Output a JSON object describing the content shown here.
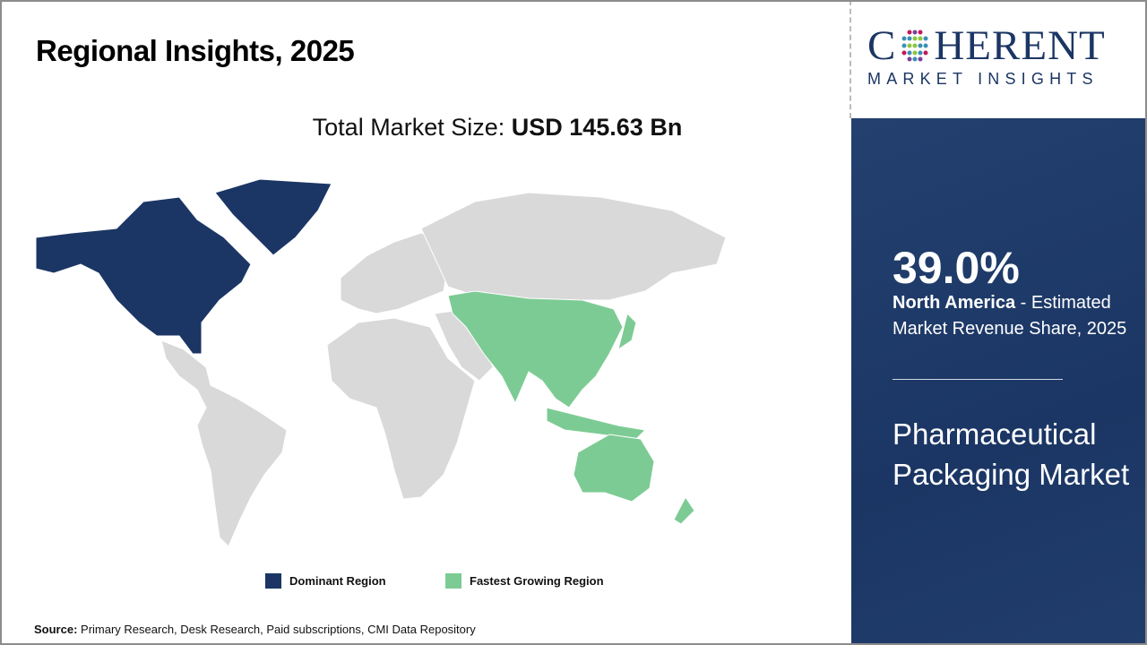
{
  "header": {
    "title": "Regional Insights, 2025"
  },
  "total_market": {
    "label": "Total Market Size: ",
    "value": "USD 145.63 Bn"
  },
  "map": {
    "colors": {
      "dominant": "#1b3664",
      "fastest": "#7dcb94",
      "other": "#d9d9d9"
    },
    "dominant_region": "North America",
    "fastest_growing_region": "Asia Pacific"
  },
  "legend": [
    {
      "label": "Dominant Region",
      "color": "#1b3664"
    },
    {
      "label": "Fastest Growing Region",
      "color": "#7dcb94"
    }
  ],
  "source": {
    "label": "Source:",
    "text": " Primary Research, Desk Research, Paid subscriptions, CMI Data Repository"
  },
  "logo": {
    "line1_a": "C",
    "line1_b": "HERENT",
    "line2": "MARKET INSIGHTS"
  },
  "panel": {
    "percent": "39.0%",
    "region": "North America",
    "desc": " - Estimated Market Revenue Share, 2025",
    "market": "Pharmaceutical Packaging Market"
  }
}
